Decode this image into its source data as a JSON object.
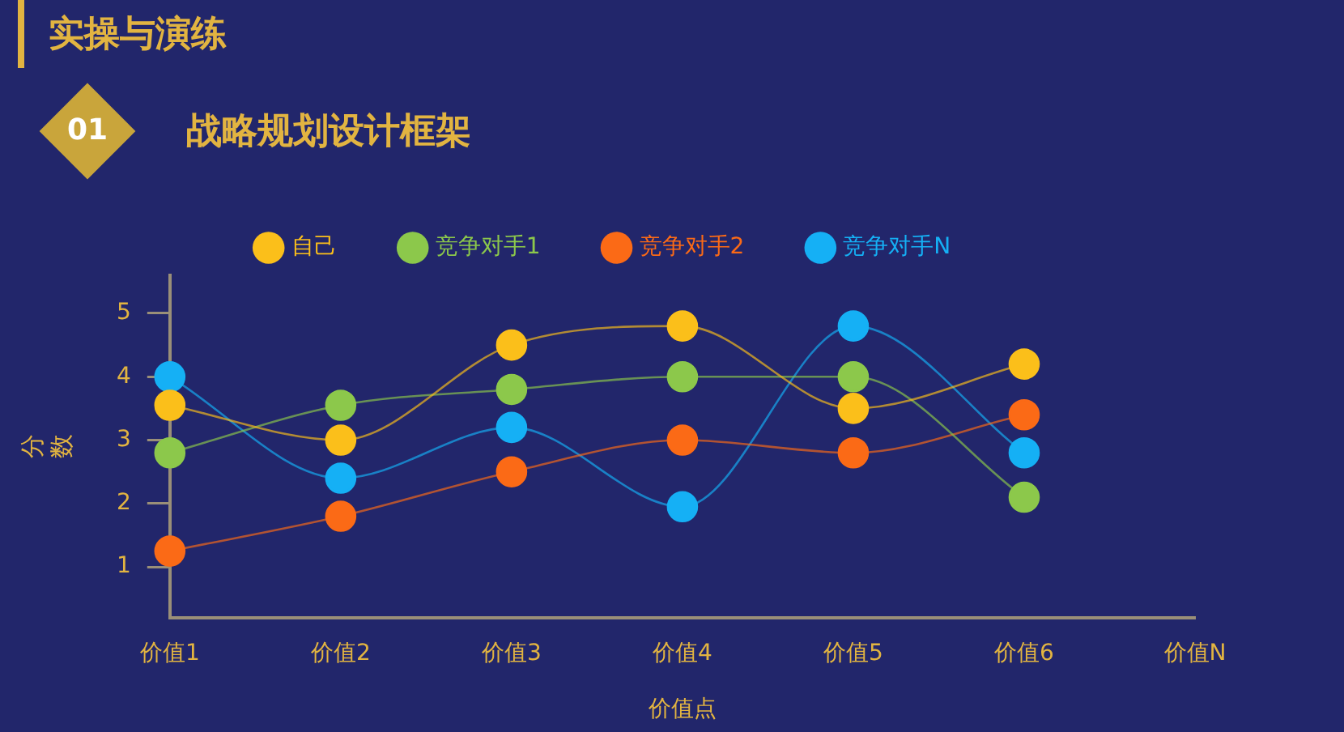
{
  "chart_data": {
    "type": "line",
    "title": "战略规划设计框架",
    "annotations": [
      "实操与演练",
      "01"
    ],
    "xlabel": "价值点",
    "ylabel": "分数",
    "categories": [
      "价值1",
      "价值2",
      "价值3",
      "价值4",
      "价值5",
      "价值6",
      "价值N"
    ],
    "series": [
      {
        "name": "自己",
        "color": "#fbbf1a",
        "values": [
          3.55,
          3.0,
          4.5,
          4.8,
          3.5,
          4.2,
          null
        ]
      },
      {
        "name": "竞争对手1",
        "color": "#8cc84b",
        "values": [
          2.8,
          3.55,
          3.8,
          4.0,
          4.0,
          2.1,
          null
        ]
      },
      {
        "name": "竞争对手2",
        "color": "#fb6a16",
        "values": [
          1.25,
          1.8,
          2.5,
          3.0,
          2.8,
          3.4,
          null
        ]
      },
      {
        "name": "竞争对手N",
        "color": "#15b0f5",
        "values": [
          4.0,
          2.4,
          3.2,
          1.95,
          4.8,
          2.8,
          null
        ]
      }
    ],
    "ylim": [
      0.2,
      5.6
    ],
    "yticks": [
      1,
      2,
      3,
      4,
      5
    ],
    "grid": false,
    "legend": "top",
    "marker": "circle",
    "line_style": "solid"
  }
}
